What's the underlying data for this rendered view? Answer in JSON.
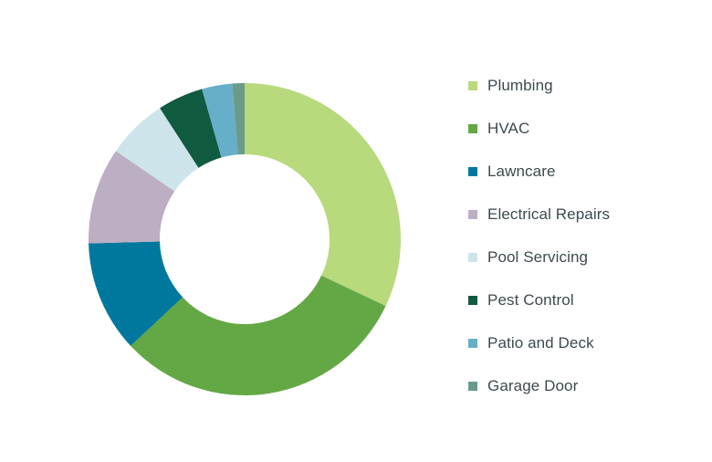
{
  "chart_data": {
    "type": "pie",
    "subtype": "donut",
    "title": "",
    "legend_position": "right",
    "categories": [
      "Plumbing",
      "HVAC",
      "Lawncare",
      "Electrical Repairs",
      "Pool Servicing",
      "Pest Control",
      "Patio and Deck",
      "Garage Door"
    ],
    "values": [
      30.5,
      29.5,
      11.0,
      9.5,
      6.0,
      4.5,
      3.0,
      1.2
    ],
    "colors": [
      "#b8d97c",
      "#63a844",
      "#00789e",
      "#bcaec3",
      "#cde4ea",
      "#105a40",
      "#67aec8",
      "#6a9b88"
    ]
  }
}
